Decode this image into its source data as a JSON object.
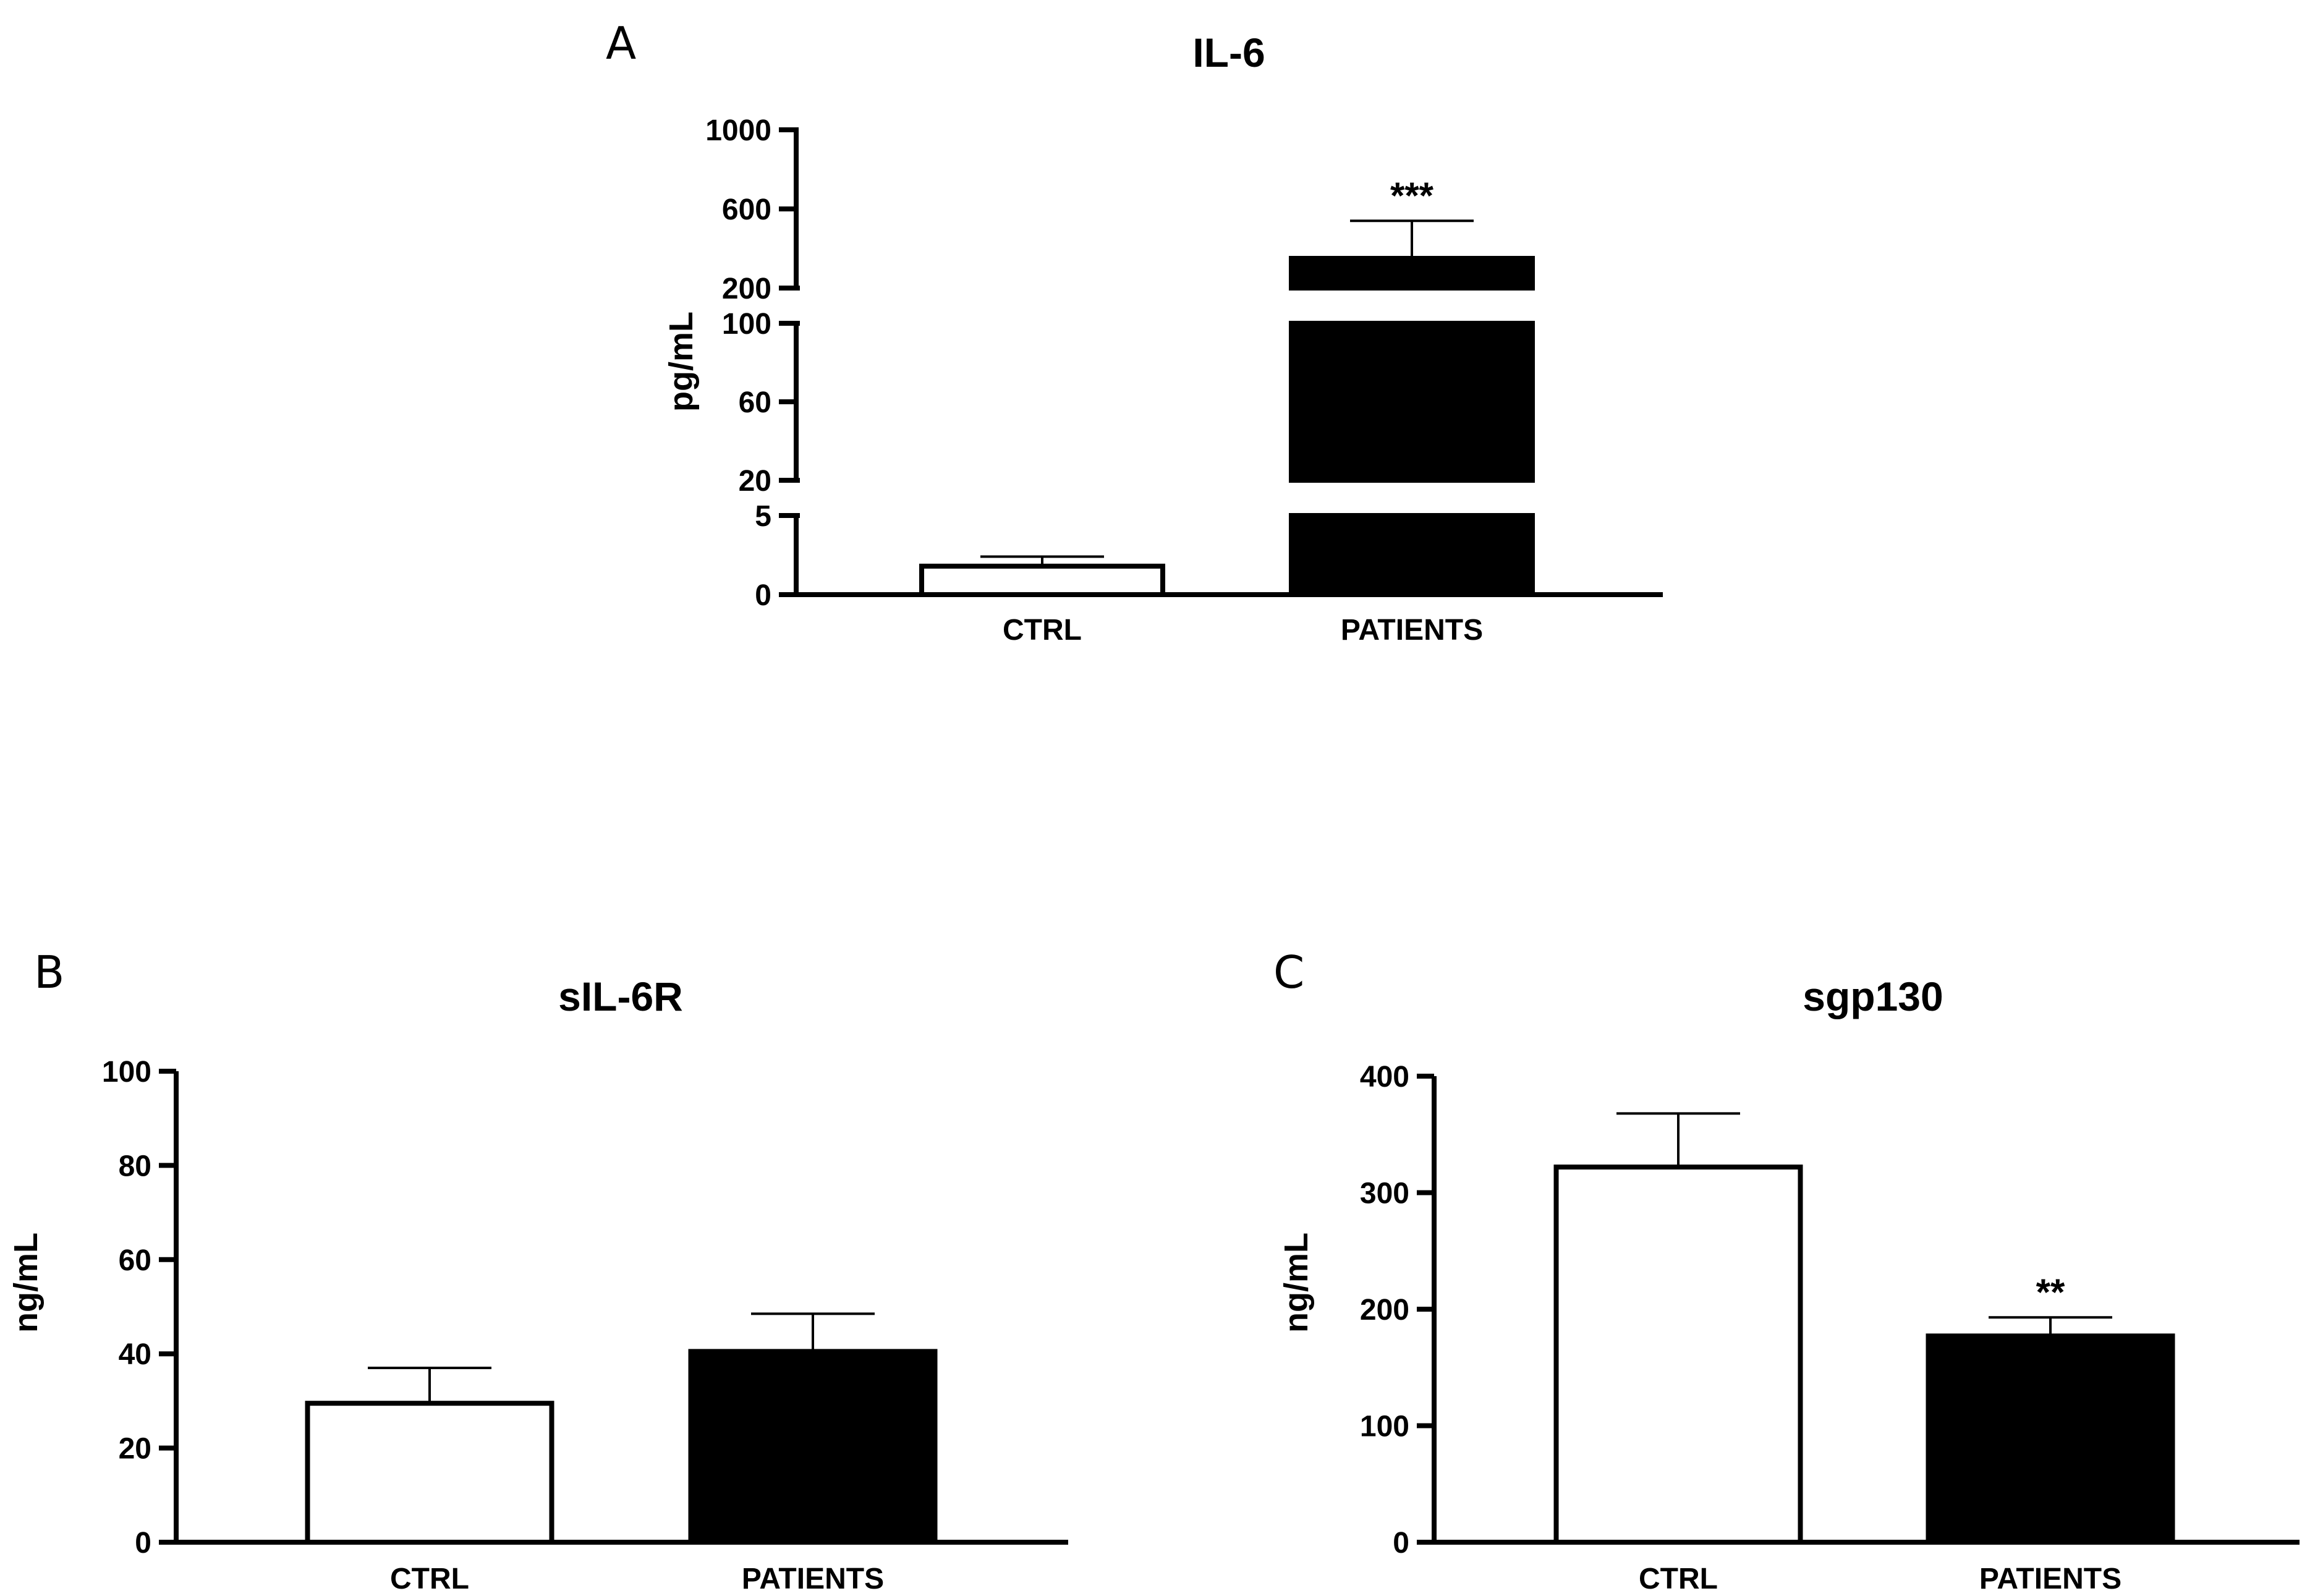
{
  "chart_data": [
    {
      "panel": "A",
      "type": "bar",
      "title": "IL-6",
      "ylabel": "pg/mL",
      "xlabel": "",
      "categories": [
        "CTRL",
        "PATIENTS"
      ],
      "series": [
        {
          "name": "IL-6",
          "values": [
            1.8,
            350
          ],
          "errors": [
            0.6,
            190
          ],
          "fills": [
            "#ffffff",
            "#000000"
          ]
        }
      ],
      "significance": [
        "",
        "***"
      ],
      "y_segments": [
        {
          "range": [
            0,
            5
          ],
          "ticks": [
            0,
            5
          ]
        },
        {
          "range": [
            20,
            100
          ],
          "ticks": [
            20,
            60,
            100
          ]
        },
        {
          "range": [
            200,
            1000
          ],
          "ticks": [
            200,
            600,
            1000
          ]
        }
      ],
      "ylim": [
        0,
        1000
      ],
      "axis_break": true,
      "grid": false
    },
    {
      "panel": "B",
      "type": "bar",
      "title": "sIL-6R",
      "ylabel": "ng/mL",
      "xlabel": "",
      "categories": [
        "CTRL",
        "PATIENTS"
      ],
      "series": [
        {
          "name": "sIL-6R",
          "values": [
            29.5,
            40.5
          ],
          "errors": [
            7.5,
            8.0
          ],
          "fills": [
            "#ffffff",
            "#000000"
          ]
        }
      ],
      "significance": [
        "",
        ""
      ],
      "yticks": [
        0,
        20,
        40,
        60,
        80,
        100
      ],
      "ylim": [
        0,
        100
      ],
      "grid": false
    },
    {
      "panel": "C",
      "type": "bar",
      "title": "sgp130",
      "ylabel": "ng/mL",
      "xlabel": "",
      "categories": [
        "CTRL",
        "PATIENTS"
      ],
      "series": [
        {
          "name": "sgp130",
          "values": [
            322,
            177
          ],
          "errors": [
            46,
            16
          ],
          "fills": [
            "#ffffff",
            "#000000"
          ]
        }
      ],
      "significance": [
        "",
        "**"
      ],
      "yticks": [
        0,
        100,
        200,
        300,
        400
      ],
      "ylim": [
        0,
        400
      ],
      "grid": false
    }
  ]
}
